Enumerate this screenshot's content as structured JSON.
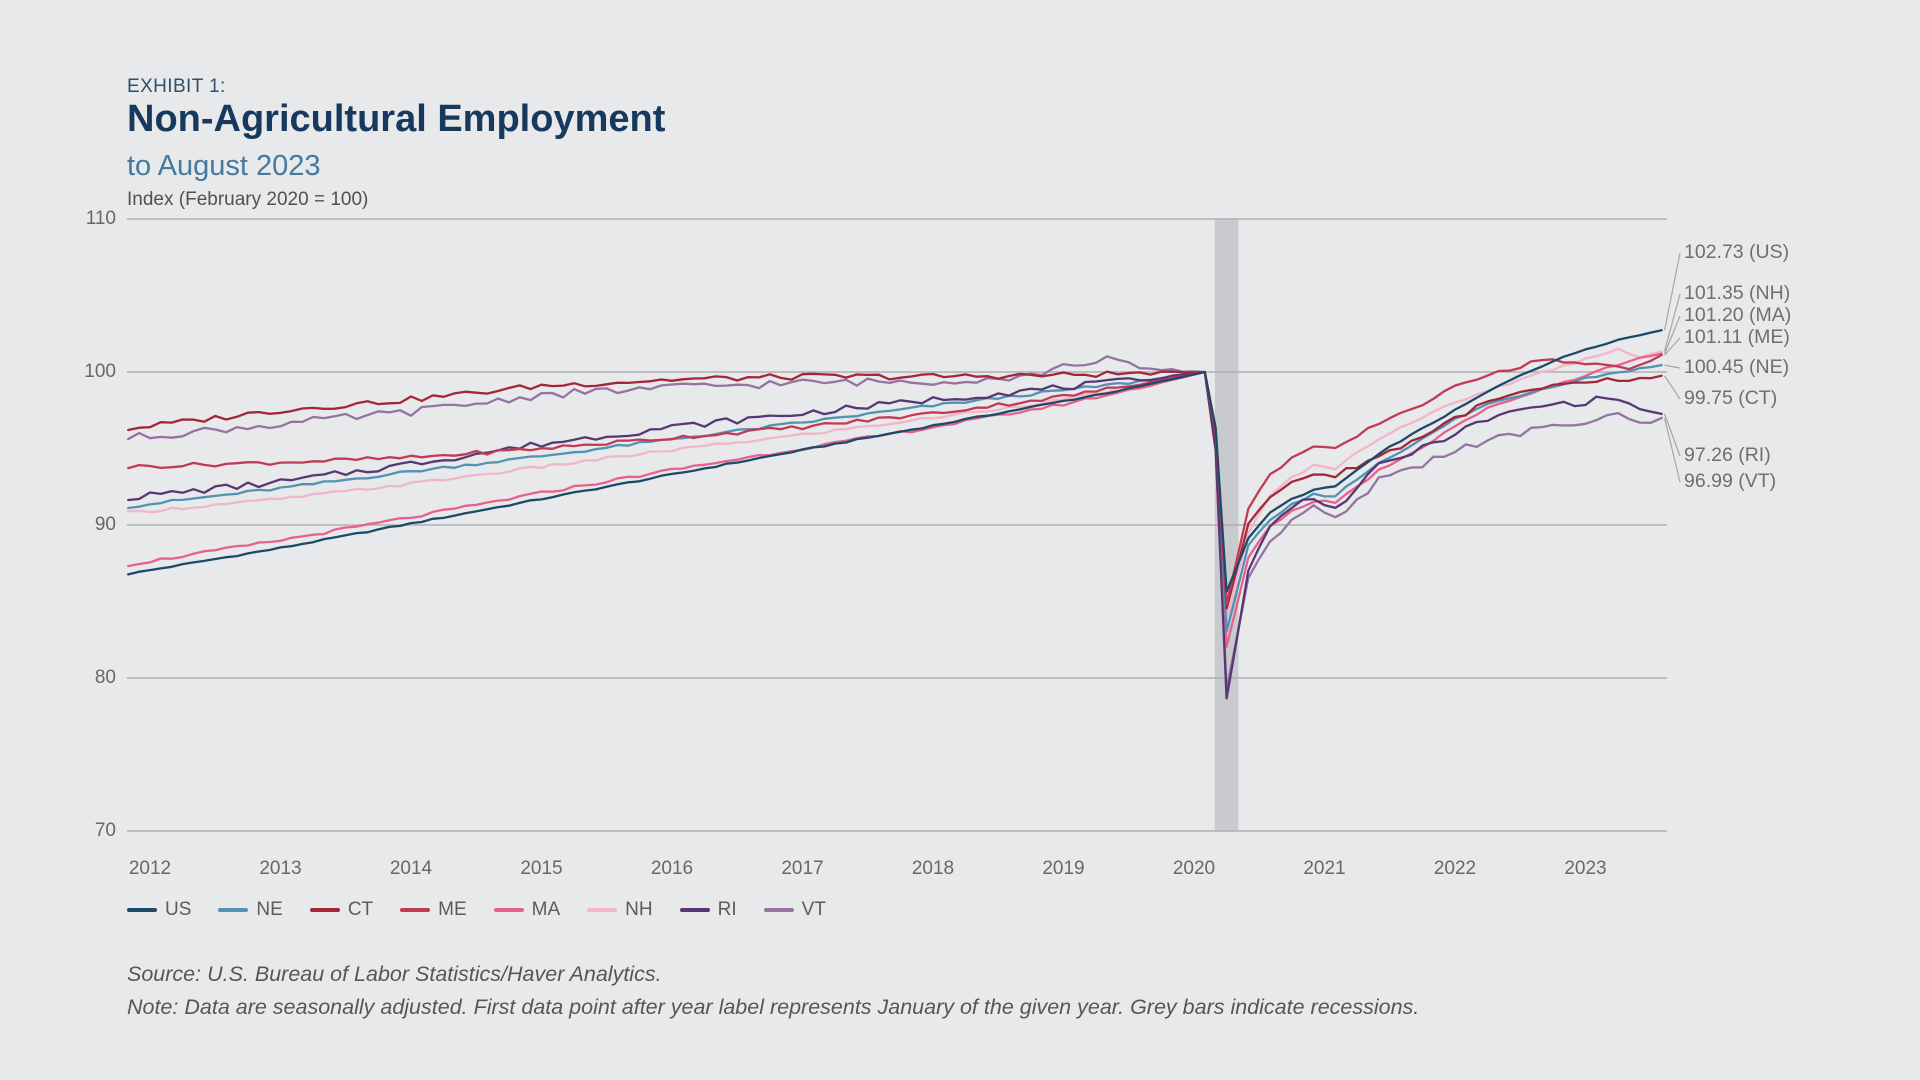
{
  "header": {
    "exhibit_label": "EXHIBIT 1:",
    "title": "Non-Agricultural Employment",
    "subtitle": "to August 2023",
    "axis_note": "Index (February 2020 = 100)"
  },
  "footer": {
    "source": "Source: U.S. Bureau of Labor Statistics/Haver Analytics.",
    "note": "Note: Data are seasonally adjusted. First data point after year label represents January of the given year. Grey bars indicate recessions."
  },
  "chart_data": {
    "type": "line",
    "title": "Non-Agricultural Employment to August 2023",
    "ylabel": "Index (February 2020 = 100)",
    "x_tick_years": [
      2012,
      2013,
      2014,
      2015,
      2016,
      2017,
      2018,
      2019,
      2020,
      2021,
      2022,
      2023
    ],
    "y_ticks": [
      110,
      100,
      90,
      80,
      70
    ],
    "ylim": [
      70,
      110
    ],
    "x_range": [
      2011.833,
      2023.583
    ],
    "grid_color": "#afb0b3",
    "recession_band": {
      "start": 2020.16,
      "end": 2020.34,
      "color": "#c9cacd",
      "meaning": "recession (Feb–Apr 2020)"
    },
    "leader_line_color": "#a6a6aa",
    "series": [
      {
        "name": "US",
        "color": "#1d4a68",
        "end_value": 102.73,
        "end_label": "102.73 (US)",
        "noise": 0.05,
        "anchors": [
          [
            2011.83,
            86.8
          ],
          [
            2013,
            88.5
          ],
          [
            2014,
            90.1
          ],
          [
            2015,
            91.7
          ],
          [
            2016,
            93.3
          ],
          [
            2017,
            94.9
          ],
          [
            2018,
            96.5
          ],
          [
            2019,
            98.1
          ],
          [
            2019.5,
            98.9
          ],
          [
            2020.083,
            100
          ],
          [
            2020.167,
            96.3
          ],
          [
            2020.25,
            85.6
          ],
          [
            2020.42,
            89.2
          ],
          [
            2020.58,
            90.8
          ],
          [
            2020.75,
            91.7
          ],
          [
            2020.92,
            92.3
          ],
          [
            2021.08,
            92.5
          ],
          [
            2021.25,
            93.6
          ],
          [
            2021.5,
            95.1
          ],
          [
            2021.75,
            96.3
          ],
          [
            2022,
            97.5
          ],
          [
            2022.25,
            98.7
          ],
          [
            2022.5,
            99.8
          ],
          [
            2022.75,
            100.7
          ],
          [
            2023,
            101.5
          ],
          [
            2023.25,
            102.1
          ],
          [
            2023.583,
            102.73
          ]
        ]
      },
      {
        "name": "NE",
        "color": "#5292b5",
        "end_value": 100.45,
        "end_label": "100.45 (NE)",
        "noise": 0.1,
        "anchors": [
          [
            2011.83,
            91.2
          ],
          [
            2013,
            92.4
          ],
          [
            2014,
            93.5
          ],
          [
            2015,
            94.5
          ],
          [
            2016,
            95.6
          ],
          [
            2017,
            96.7
          ],
          [
            2018,
            97.8
          ],
          [
            2019,
            98.8
          ],
          [
            2019.5,
            99.3
          ],
          [
            2020.083,
            100
          ],
          [
            2020.167,
            95.9
          ],
          [
            2020.25,
            83.0
          ],
          [
            2020.42,
            88.8
          ],
          [
            2020.58,
            90.3
          ],
          [
            2020.75,
            91.3
          ],
          [
            2020.92,
            92.0
          ],
          [
            2021.08,
            91.9
          ],
          [
            2021.25,
            93.0
          ],
          [
            2021.42,
            94.1
          ],
          [
            2021.75,
            95.6
          ],
          [
            2022,
            96.9
          ],
          [
            2022.25,
            97.9
          ],
          [
            2022.5,
            98.5
          ],
          [
            2022.75,
            99.1
          ],
          [
            2023,
            99.6
          ],
          [
            2023.25,
            100.0
          ],
          [
            2023.42,
            100.2
          ],
          [
            2023.583,
            100.45
          ]
        ]
      },
      {
        "name": "CT",
        "color": "#a42639",
        "end_value": 99.75,
        "end_label": "99.75 (CT)",
        "noise": 0.2,
        "anchors": [
          [
            2011.83,
            96.3
          ],
          [
            2013,
            97.5
          ],
          [
            2014,
            98.2
          ],
          [
            2015,
            99.1
          ],
          [
            2016,
            99.5
          ],
          [
            2017,
            99.7
          ],
          [
            2018,
            99.7
          ],
          [
            2019,
            99.8
          ],
          [
            2019.5,
            99.9
          ],
          [
            2020.083,
            100
          ],
          [
            2020.167,
            95.9
          ],
          [
            2020.25,
            84.5
          ],
          [
            2020.42,
            90.2
          ],
          [
            2020.58,
            91.8
          ],
          [
            2020.75,
            92.8
          ],
          [
            2020.92,
            93.4
          ],
          [
            2021.08,
            93.2
          ],
          [
            2021.25,
            93.9
          ],
          [
            2021.42,
            94.5
          ],
          [
            2021.75,
            95.8
          ],
          [
            2022,
            97.0
          ],
          [
            2022.25,
            98.0
          ],
          [
            2022.5,
            98.6
          ],
          [
            2022.75,
            99.0
          ],
          [
            2023,
            99.3
          ],
          [
            2023.17,
            99.5
          ],
          [
            2023.33,
            99.3
          ],
          [
            2023.45,
            99.5
          ],
          [
            2023.583,
            99.75
          ]
        ]
      },
      {
        "name": "ME",
        "color": "#c23a54",
        "end_value": 101.11,
        "end_label": "101.11 (ME)",
        "noise": 0.14,
        "anchors": [
          [
            2011.83,
            93.8
          ],
          [
            2013,
            94.1
          ],
          [
            2014,
            94.4
          ],
          [
            2015,
            95.0
          ],
          [
            2016,
            95.7
          ],
          [
            2017,
            96.4
          ],
          [
            2018,
            97.3
          ],
          [
            2019,
            98.4
          ],
          [
            2019.5,
            99.1
          ],
          [
            2020.083,
            100
          ],
          [
            2020.167,
            96.1
          ],
          [
            2020.25,
            84.8
          ],
          [
            2020.42,
            91.2
          ],
          [
            2020.58,
            93.3
          ],
          [
            2020.75,
            94.4
          ],
          [
            2020.92,
            95.1
          ],
          [
            2021.08,
            94.9
          ],
          [
            2021.25,
            95.8
          ],
          [
            2021.42,
            96.7
          ],
          [
            2021.58,
            97.3
          ],
          [
            2021.75,
            97.9
          ],
          [
            2022,
            99.0
          ],
          [
            2022.17,
            99.6
          ],
          [
            2022.33,
            100.1
          ],
          [
            2022.5,
            100.3
          ],
          [
            2022.67,
            100.9
          ],
          [
            2022.83,
            100.7
          ],
          [
            2023,
            100.5
          ],
          [
            2023.17,
            100.4
          ],
          [
            2023.33,
            100.2
          ],
          [
            2023.45,
            100.5
          ],
          [
            2023.583,
            101.11
          ]
        ]
      },
      {
        "name": "MA",
        "color": "#e8618c",
        "end_value": 101.2,
        "end_label": "101.20 (MA)",
        "noise": 0.1,
        "anchors": [
          [
            2011.83,
            87.4
          ],
          [
            2013,
            89.0
          ],
          [
            2014,
            90.5
          ],
          [
            2015,
            92.1
          ],
          [
            2016,
            93.6
          ],
          [
            2017,
            95.0
          ],
          [
            2018,
            96.4
          ],
          [
            2019,
            97.9
          ],
          [
            2019.5,
            98.8
          ],
          [
            2020.083,
            100
          ],
          [
            2020.167,
            95.6
          ],
          [
            2020.25,
            82.0
          ],
          [
            2020.42,
            88.0
          ],
          [
            2020.58,
            89.9
          ],
          [
            2020.75,
            90.9
          ],
          [
            2020.92,
            91.6
          ],
          [
            2021.08,
            91.5
          ],
          [
            2021.25,
            92.5
          ],
          [
            2021.42,
            93.6
          ],
          [
            2021.75,
            95.1
          ],
          [
            2022,
            96.5
          ],
          [
            2022.25,
            97.6
          ],
          [
            2022.5,
            98.4
          ],
          [
            2022.75,
            99.1
          ],
          [
            2023,
            99.8
          ],
          [
            2023.25,
            100.5
          ],
          [
            2023.42,
            100.9
          ],
          [
            2023.583,
            101.2
          ]
        ]
      },
      {
        "name": "NH",
        "color": "#f2b6c9",
        "end_value": 101.35,
        "end_label": "101.35 (NH)",
        "noise": 0.1,
        "anchors": [
          [
            2011.83,
            90.8
          ],
          [
            2013,
            91.7
          ],
          [
            2014,
            92.7
          ],
          [
            2015,
            93.8
          ],
          [
            2016,
            94.9
          ],
          [
            2017,
            95.9
          ],
          [
            2018,
            97.0
          ],
          [
            2019,
            98.2
          ],
          [
            2019.5,
            99.0
          ],
          [
            2020.083,
            100
          ],
          [
            2020.167,
            95.8
          ],
          [
            2020.25,
            83.8
          ],
          [
            2020.42,
            89.6
          ],
          [
            2020.58,
            91.9
          ],
          [
            2020.75,
            93.1
          ],
          [
            2020.92,
            93.9
          ],
          [
            2021.08,
            93.7
          ],
          [
            2021.25,
            94.7
          ],
          [
            2021.42,
            95.7
          ],
          [
            2021.58,
            96.4
          ],
          [
            2021.75,
            97.0
          ],
          [
            2022,
            98.0
          ],
          [
            2022.25,
            98.8
          ],
          [
            2022.5,
            99.5
          ],
          [
            2022.75,
            100.2
          ],
          [
            2022.92,
            100.6
          ],
          [
            2023.08,
            101.1
          ],
          [
            2023.25,
            101.5
          ],
          [
            2023.42,
            101.0
          ],
          [
            2023.583,
            101.35
          ]
        ]
      },
      {
        "name": "RI",
        "color": "#583874",
        "end_value": 97.26,
        "end_label": "97.26 (RI)",
        "noise": 0.22,
        "anchors": [
          [
            2011.83,
            91.8
          ],
          [
            2013,
            92.8
          ],
          [
            2014,
            94.0
          ],
          [
            2015,
            95.3
          ],
          [
            2016,
            96.4
          ],
          [
            2017,
            97.3
          ],
          [
            2018,
            98.2
          ],
          [
            2019,
            99.0
          ],
          [
            2019.5,
            99.4
          ],
          [
            2020.083,
            100
          ],
          [
            2020.167,
            94.8
          ],
          [
            2020.25,
            78.6
          ],
          [
            2020.42,
            87.2
          ],
          [
            2020.58,
            89.9
          ],
          [
            2020.75,
            91.2
          ],
          [
            2020.92,
            91.9
          ],
          [
            2021.08,
            91.0
          ],
          [
            2021.25,
            92.4
          ],
          [
            2021.42,
            93.9
          ],
          [
            2021.75,
            95.0
          ],
          [
            2022,
            96.0
          ],
          [
            2022.25,
            96.9
          ],
          [
            2022.5,
            97.5
          ],
          [
            2022.75,
            97.9
          ],
          [
            2023,
            98.0
          ],
          [
            2023.17,
            98.4
          ],
          [
            2023.33,
            97.9
          ],
          [
            2023.45,
            97.5
          ],
          [
            2023.583,
            97.26
          ]
        ]
      },
      {
        "name": "VT",
        "color": "#9573a2",
        "end_value": 96.99,
        "end_label": "96.99 (VT)",
        "noise": 0.26,
        "anchors": [
          [
            2011.83,
            95.7
          ],
          [
            2013,
            96.6
          ],
          [
            2014,
            97.4
          ],
          [
            2015,
            98.5
          ],
          [
            2016,
            99.0
          ],
          [
            2017,
            99.3
          ],
          [
            2018,
            99.4
          ],
          [
            2018.7,
            99.7
          ],
          [
            2019.3,
            100.9
          ],
          [
            2019.6,
            100.2
          ],
          [
            2020.083,
            100
          ],
          [
            2020.167,
            94.9
          ],
          [
            2020.25,
            79.2
          ],
          [
            2020.42,
            86.7
          ],
          [
            2020.58,
            88.9
          ],
          [
            2020.75,
            90.4
          ],
          [
            2020.92,
            91.1
          ],
          [
            2021.08,
            90.3
          ],
          [
            2021.25,
            91.5
          ],
          [
            2021.42,
            93.0
          ],
          [
            2021.75,
            94.0
          ],
          [
            2022,
            94.9
          ],
          [
            2022.25,
            95.5
          ],
          [
            2022.5,
            96.0
          ],
          [
            2022.75,
            96.4
          ],
          [
            2023,
            96.7
          ],
          [
            2023.17,
            97.3
          ],
          [
            2023.33,
            96.9
          ],
          [
            2023.45,
            96.5
          ],
          [
            2023.583,
            96.99
          ]
        ]
      }
    ],
    "legend_position": "bottom-left"
  }
}
